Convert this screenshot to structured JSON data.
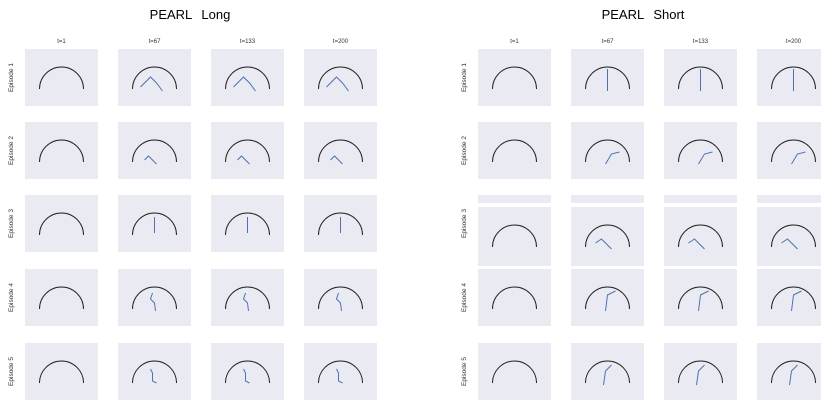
{
  "groups": [
    {
      "title": "PEARL Long",
      "columns": [
        "t=1",
        "t=67",
        "t=133",
        "t=200"
      ],
      "rows": [
        "Episode 1",
        "Episode 2",
        "Episode 3",
        "Episode 4",
        "Episode 5"
      ]
    },
    {
      "title": "PEARL Short",
      "columns": [
        "t=1",
        "t=67",
        "t=133",
        "t=200"
      ],
      "rows": [
        "Episode 1",
        "Episode 2",
        "Episode 3",
        "Episode 4",
        "Episode 5"
      ]
    }
  ]
}
